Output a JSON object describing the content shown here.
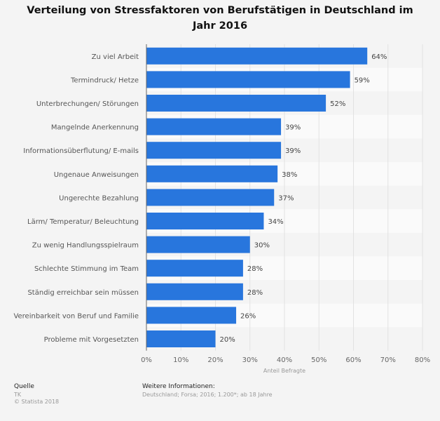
{
  "chart_data": {
    "type": "bar",
    "orientation": "horizontal",
    "title": "Verteilung von Stressfaktoren von Berufstätigen in Deutschland im Jahr 2016",
    "categories": [
      "Zu viel Arbeit",
      "Termindruck/ Hetze",
      "Unterbrechungen/ Störungen",
      "Mangelnde Anerkennung",
      "Informationsüberflutung/ E-mails",
      "Ungenaue Anweisungen",
      "Ungerechte Bezahlung",
      "Lärm/ Temperatur/ Beleuchtung",
      "Zu wenig Handlungsspielraum",
      "Schlechte Stimmung im Team",
      "Ständig erreichbar sein müssen",
      "Vereinbarkeit von Beruf und Familie",
      "Probleme mit Vorgesetzten"
    ],
    "values": [
      64,
      59,
      52,
      39,
      39,
      38,
      37,
      34,
      30,
      28,
      28,
      26,
      20
    ],
    "value_labels": [
      "64%",
      "59%",
      "52%",
      "39%",
      "39%",
      "38%",
      "37%",
      "34%",
      "30%",
      "28%",
      "28%",
      "26%",
      "20%"
    ],
    "xlabel": "Anteil Befragte",
    "ylabel": "",
    "xlim": [
      0,
      80
    ],
    "xticks": [
      "0%",
      "10%",
      "20%",
      "30%",
      "40%",
      "50%",
      "60%",
      "70%",
      "80%"
    ],
    "grid": true,
    "bar_color": "#2876dd"
  },
  "footer": {
    "source_heading": "Quelle",
    "source": "TK",
    "copyright": "© Statista 2018",
    "info_heading": "Weitere Informationen:",
    "info": "Deutschland; Forsa; 2016; 1.200*; ab 18 Jahre"
  }
}
